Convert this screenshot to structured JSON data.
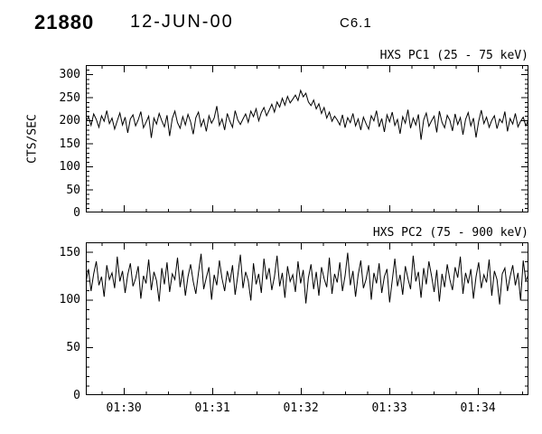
{
  "header": {
    "event_id": "21880",
    "date": "12-JUN-00",
    "goes_class": "C6.1"
  },
  "chart_data": [
    {
      "type": "line",
      "title": "HXS PC1 (25 - 75 keV)",
      "ylabel": "CTS/SEC",
      "ylim": [
        0,
        320
      ],
      "yticks": [
        0,
        50,
        100,
        150,
        200,
        250,
        300
      ],
      "y_minor_step": 10,
      "x_start_min": 89.57,
      "x_end_min": 94.57,
      "xticks_min": [
        90,
        91,
        92,
        93,
        94
      ],
      "xtick_labels": [],
      "values": [
        196,
        208,
        189,
        214,
        202,
        185,
        210,
        198,
        221,
        193,
        205,
        181,
        199,
        216,
        190,
        207,
        173,
        203,
        212,
        188,
        201,
        219,
        184,
        196,
        209,
        162,
        205,
        192,
        215,
        199,
        186,
        211,
        166,
        204,
        220,
        195,
        183,
        208,
        190,
        213,
        197,
        170,
        206,
        218,
        187,
        202,
        176,
        210,
        194,
        205,
        231,
        189,
        203,
        179,
        215,
        198,
        185,
        221,
        201,
        191,
        203,
        214,
        196,
        220,
        208,
        225,
        199,
        217,
        228,
        210,
        222,
        235,
        218,
        240,
        229,
        248,
        233,
        252,
        238,
        246,
        255,
        243,
        265,
        251,
        259,
        240,
        232,
        244,
        225,
        236,
        215,
        228,
        205,
        218,
        198,
        209,
        201,
        190,
        212,
        184,
        206,
        195,
        215,
        188,
        203,
        179,
        207,
        193,
        181,
        210,
        199,
        221,
        186,
        204,
        175,
        212,
        197,
        218,
        189,
        202,
        171,
        208,
        194,
        223,
        183,
        205,
        190,
        213,
        158,
        201,
        216,
        187,
        199,
        209,
        174,
        220,
        196,
        184,
        211,
        200,
        177,
        214,
        191,
        206,
        169,
        202,
        217,
        188,
        205,
        163,
        198,
        222,
        193,
        207,
        185,
        200,
        210,
        182,
        203,
        195,
        219,
        176,
        204,
        192,
        215,
        186,
        198,
        207,
        188,
        201
      ]
    },
    {
      "type": "line",
      "title": "HXS PC2 (75 - 900 keV)",
      "ylabel": "",
      "ylim": [
        0,
        160
      ],
      "yticks": [
        0,
        50,
        100,
        150
      ],
      "y_minor_step": 10,
      "x_start_min": 89.57,
      "x_end_min": 94.57,
      "xticks_min": [
        90,
        91,
        92,
        93,
        94
      ],
      "xtick_labels": [
        "01:30",
        "01:31",
        "01:32",
        "01:33",
        "01:34"
      ],
      "values": [
        118,
        132,
        109,
        127,
        140,
        115,
        124,
        103,
        136,
        121,
        128,
        112,
        145,
        119,
        130,
        107,
        126,
        138,
        114,
        122,
        135,
        101,
        125,
        117,
        142,
        110,
        129,
        120,
        98,
        133,
        116,
        139,
        108,
        127,
        121,
        144,
        113,
        131,
        104,
        124,
        137,
        119,
        106,
        128,
        148,
        111,
        123,
        134,
        100,
        126,
        115,
        141,
        122,
        109,
        130,
        118,
        136,
        105,
        125,
        147,
        112,
        129,
        120,
        99,
        138,
        116,
        127,
        107,
        143,
        121,
        133,
        110,
        124,
        146,
        114,
        128,
        102,
        135,
        119,
        126,
        108,
        140,
        117,
        131,
        96,
        123,
        137,
        111,
        129,
        104,
        134,
        122,
        113,
        144,
        106,
        127,
        118,
        139,
        109,
        125,
        149,
        115,
        130,
        103,
        126,
        141,
        112,
        121,
        136,
        100,
        128,
        117,
        138,
        107,
        124,
        132,
        97,
        120,
        143,
        114,
        126,
        105,
        135,
        122,
        111,
        146,
        119,
        129,
        102,
        133,
        116,
        140,
        125,
        108,
        131,
        98,
        127,
        113,
        137,
        121,
        110,
        134,
        123,
        145,
        106,
        128,
        117,
        132,
        101,
        124,
        139,
        112,
        126,
        118,
        142,
        104,
        130,
        121,
        95,
        127,
        133,
        109,
        124,
        136,
        115,
        128,
        99,
        141,
        120,
        126
      ]
    }
  ]
}
